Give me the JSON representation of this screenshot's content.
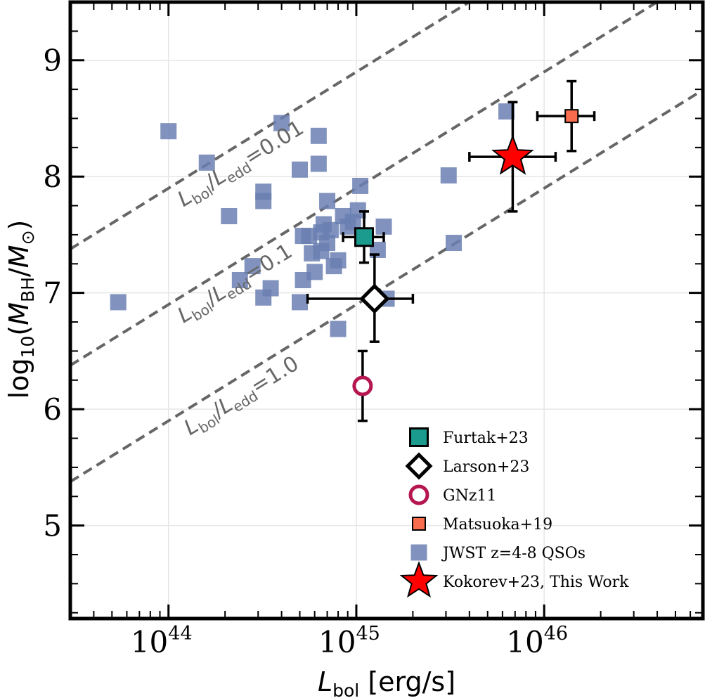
{
  "chart_data": {
    "type": "scatter",
    "xlabel": "L_bol [erg/s]",
    "xlabel_parts": {
      "symbol": "L",
      "sub": "bol",
      "unit": " [erg/s]"
    },
    "ylabel": "log10(M_BH/M_⊙)",
    "ylabel_parts": {
      "prefix": "log",
      "prefix_sub": "10",
      "open": "(",
      "M": "M",
      "bh_sub": "BH",
      "slash": "/",
      "sun_sub": "⊙",
      "close": ")"
    },
    "x_scale": "log",
    "xlim": [
      3e+43,
      7e+46
    ],
    "ylim": [
      4.2,
      9.5
    ],
    "grid": true,
    "x_ticks": [
      {
        "value": 1e+44,
        "base": "10",
        "exp": "44"
      },
      {
        "value": 1e+45,
        "base": "10",
        "exp": "45"
      },
      {
        "value": 1e+46,
        "base": "10",
        "exp": "46"
      }
    ],
    "y_ticks": [
      {
        "value": 5,
        "label": "5"
      },
      {
        "value": 6,
        "label": "6"
      },
      {
        "value": 7,
        "label": "7"
      },
      {
        "value": 8,
        "label": "8"
      },
      {
        "value": 9,
        "label": "9"
      }
    ],
    "eddington_lines": [
      {
        "ratio": 0.01,
        "label_value": "0.01",
        "label_x": 1.2e+44
      },
      {
        "ratio": 0.1,
        "label_value": "0.1",
        "label_x": 1.2e+44
      },
      {
        "ratio": 1.0,
        "label_value": "1.0",
        "label_x": 1.3e+44
      }
    ],
    "eddington_label_parts": {
      "L1": "L",
      "s1": "bol",
      "slash": "/",
      "L2": "L",
      "s2": "edd",
      "eq": "="
    },
    "series": [
      {
        "name": "JWST z=4-8 QSOs",
        "marker": "square",
        "color": "#6a7fb2",
        "points": [
          [
            5.4e+43,
            6.92
          ],
          [
            1e+44,
            8.39
          ],
          [
            1.6e+44,
            8.12
          ],
          [
            2.1e+44,
            7.66
          ],
          [
            2.4e+44,
            7.11
          ],
          [
            2.8e+44,
            7.23
          ],
          [
            3.2e+44,
            7.87
          ],
          [
            3.2e+44,
            7.79
          ],
          [
            3.2e+44,
            6.96
          ],
          [
            3.5e+44,
            7.04
          ],
          [
            4e+44,
            8.46
          ],
          [
            5e+44,
            8.06
          ],
          [
            5e+44,
            6.92
          ],
          [
            5.2e+44,
            7.11
          ],
          [
            5.2e+44,
            7.49
          ],
          [
            5.6e+44,
            7.49
          ],
          [
            5.8e+44,
            7.34
          ],
          [
            6e+44,
            7.18
          ],
          [
            6.3e+44,
            8.35
          ],
          [
            6.3e+44,
            8.11
          ],
          [
            6.5e+44,
            7.36
          ],
          [
            6.5e+44,
            7.52
          ],
          [
            6.7e+44,
            7.59
          ],
          [
            7e+44,
            7.79
          ],
          [
            7e+44,
            7.43
          ],
          [
            7.3e+44,
            7.54
          ],
          [
            7.6e+44,
            7.23
          ],
          [
            8e+44,
            7.28
          ],
          [
            8e+44,
            6.69
          ],
          [
            8.5e+44,
            7.66
          ],
          [
            9e+44,
            7.57
          ],
          [
            9.6e+44,
            7.61
          ],
          [
            1.02e+45,
            7.71
          ],
          [
            1.05e+45,
            7.92
          ],
          [
            1.3e+45,
            7.37
          ],
          [
            1.4e+45,
            7.57
          ],
          [
            1.45e+45,
            6.95
          ],
          [
            3.1e+45,
            8.01
          ],
          [
            3.3e+45,
            7.43
          ],
          [
            6.3e+45,
            8.56
          ]
        ]
      },
      {
        "name": "Furtak+23",
        "marker": "square",
        "color": "#1a9b8e",
        "points": [
          {
            "x": 1.1e+45,
            "y": 7.48,
            "xerr": [
              8.5e+44,
              1.4e+45
            ],
            "yerr": [
              7.26,
              7.7
            ]
          }
        ]
      },
      {
        "name": "Larson+23",
        "marker": "diamond",
        "color": "#ffffff",
        "points": [
          {
            "x": 1.25e+45,
            "y": 6.95,
            "xerr": [
              5.5e+44,
              2e+45
            ],
            "yerr": [
              6.58,
              7.33
            ]
          }
        ]
      },
      {
        "name": "GNz11",
        "marker": "circle",
        "color": "#b5164f",
        "points": [
          {
            "x": 1.08e+45,
            "y": 6.2,
            "yerr": [
              5.9,
              6.5
            ]
          }
        ]
      },
      {
        "name": "Matsuoka+19",
        "marker": "square",
        "color": "#f96d4e",
        "points": [
          {
            "x": 1.4e+46,
            "y": 8.52,
            "xerr": [
              9.2e+45,
              1.85e+46
            ],
            "yerr": [
              8.22,
              8.82
            ]
          }
        ]
      },
      {
        "name": "Kokorev+23, This Work",
        "marker": "star",
        "color": "#ff0000",
        "points": [
          {
            "x": 6.8e+45,
            "y": 8.17,
            "xerr": [
              4e+45,
              1.15e+46
            ],
            "yerr": [
              7.7,
              8.64
            ]
          }
        ]
      }
    ],
    "legend": {
      "position": "lower-right",
      "entries": [
        "Furtak+23",
        "Larson+23",
        "GNz11",
        "Matsuoka+19",
        "JWST z=4-8 QSOs",
        "Kokorev+23, This Work"
      ]
    }
  }
}
